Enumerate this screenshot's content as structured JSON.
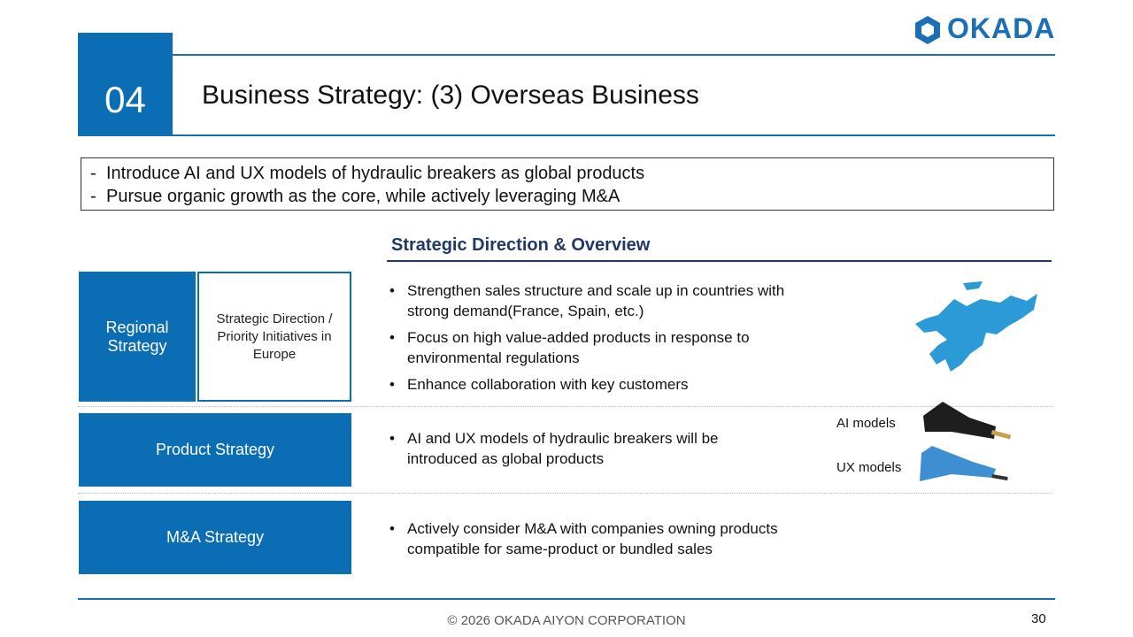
{
  "logo": "OKADA",
  "header": {
    "section_number": "04",
    "title": "Business Strategy: (3) Overseas Business"
  },
  "summary": [
    "Introduce AI and UX models of hydraulic breakers as global products",
    "Pursue organic growth as the core, while actively leveraging M&A"
  ],
  "section_heading": "Strategic Direction & Overview",
  "rows": [
    {
      "label": "Regional Strategy",
      "sublabel": "Strategic Direction / Priority Initiatives in Europe",
      "bullets": [
        "Strengthen sales structure and scale up in countries with strong demand(France, Spain, etc.)",
        "Focus on high value-added products in response to environmental regulations",
        "Enhance collaboration with key customers"
      ]
    },
    {
      "label": "Product Strategy",
      "bullets": [
        "AI and UX models of hydraulic breakers will be introduced as global products"
      ]
    },
    {
      "label": "M&A Strategy",
      "bullets": [
        "Actively consider M&A with companies owning products compatible for same-product or bundled sales"
      ]
    }
  ],
  "product_images": [
    "AI models",
    "UX models"
  ],
  "footer": {
    "copyright": "© 2026 OKADA AIYON CORPORATION",
    "page": "30"
  }
}
